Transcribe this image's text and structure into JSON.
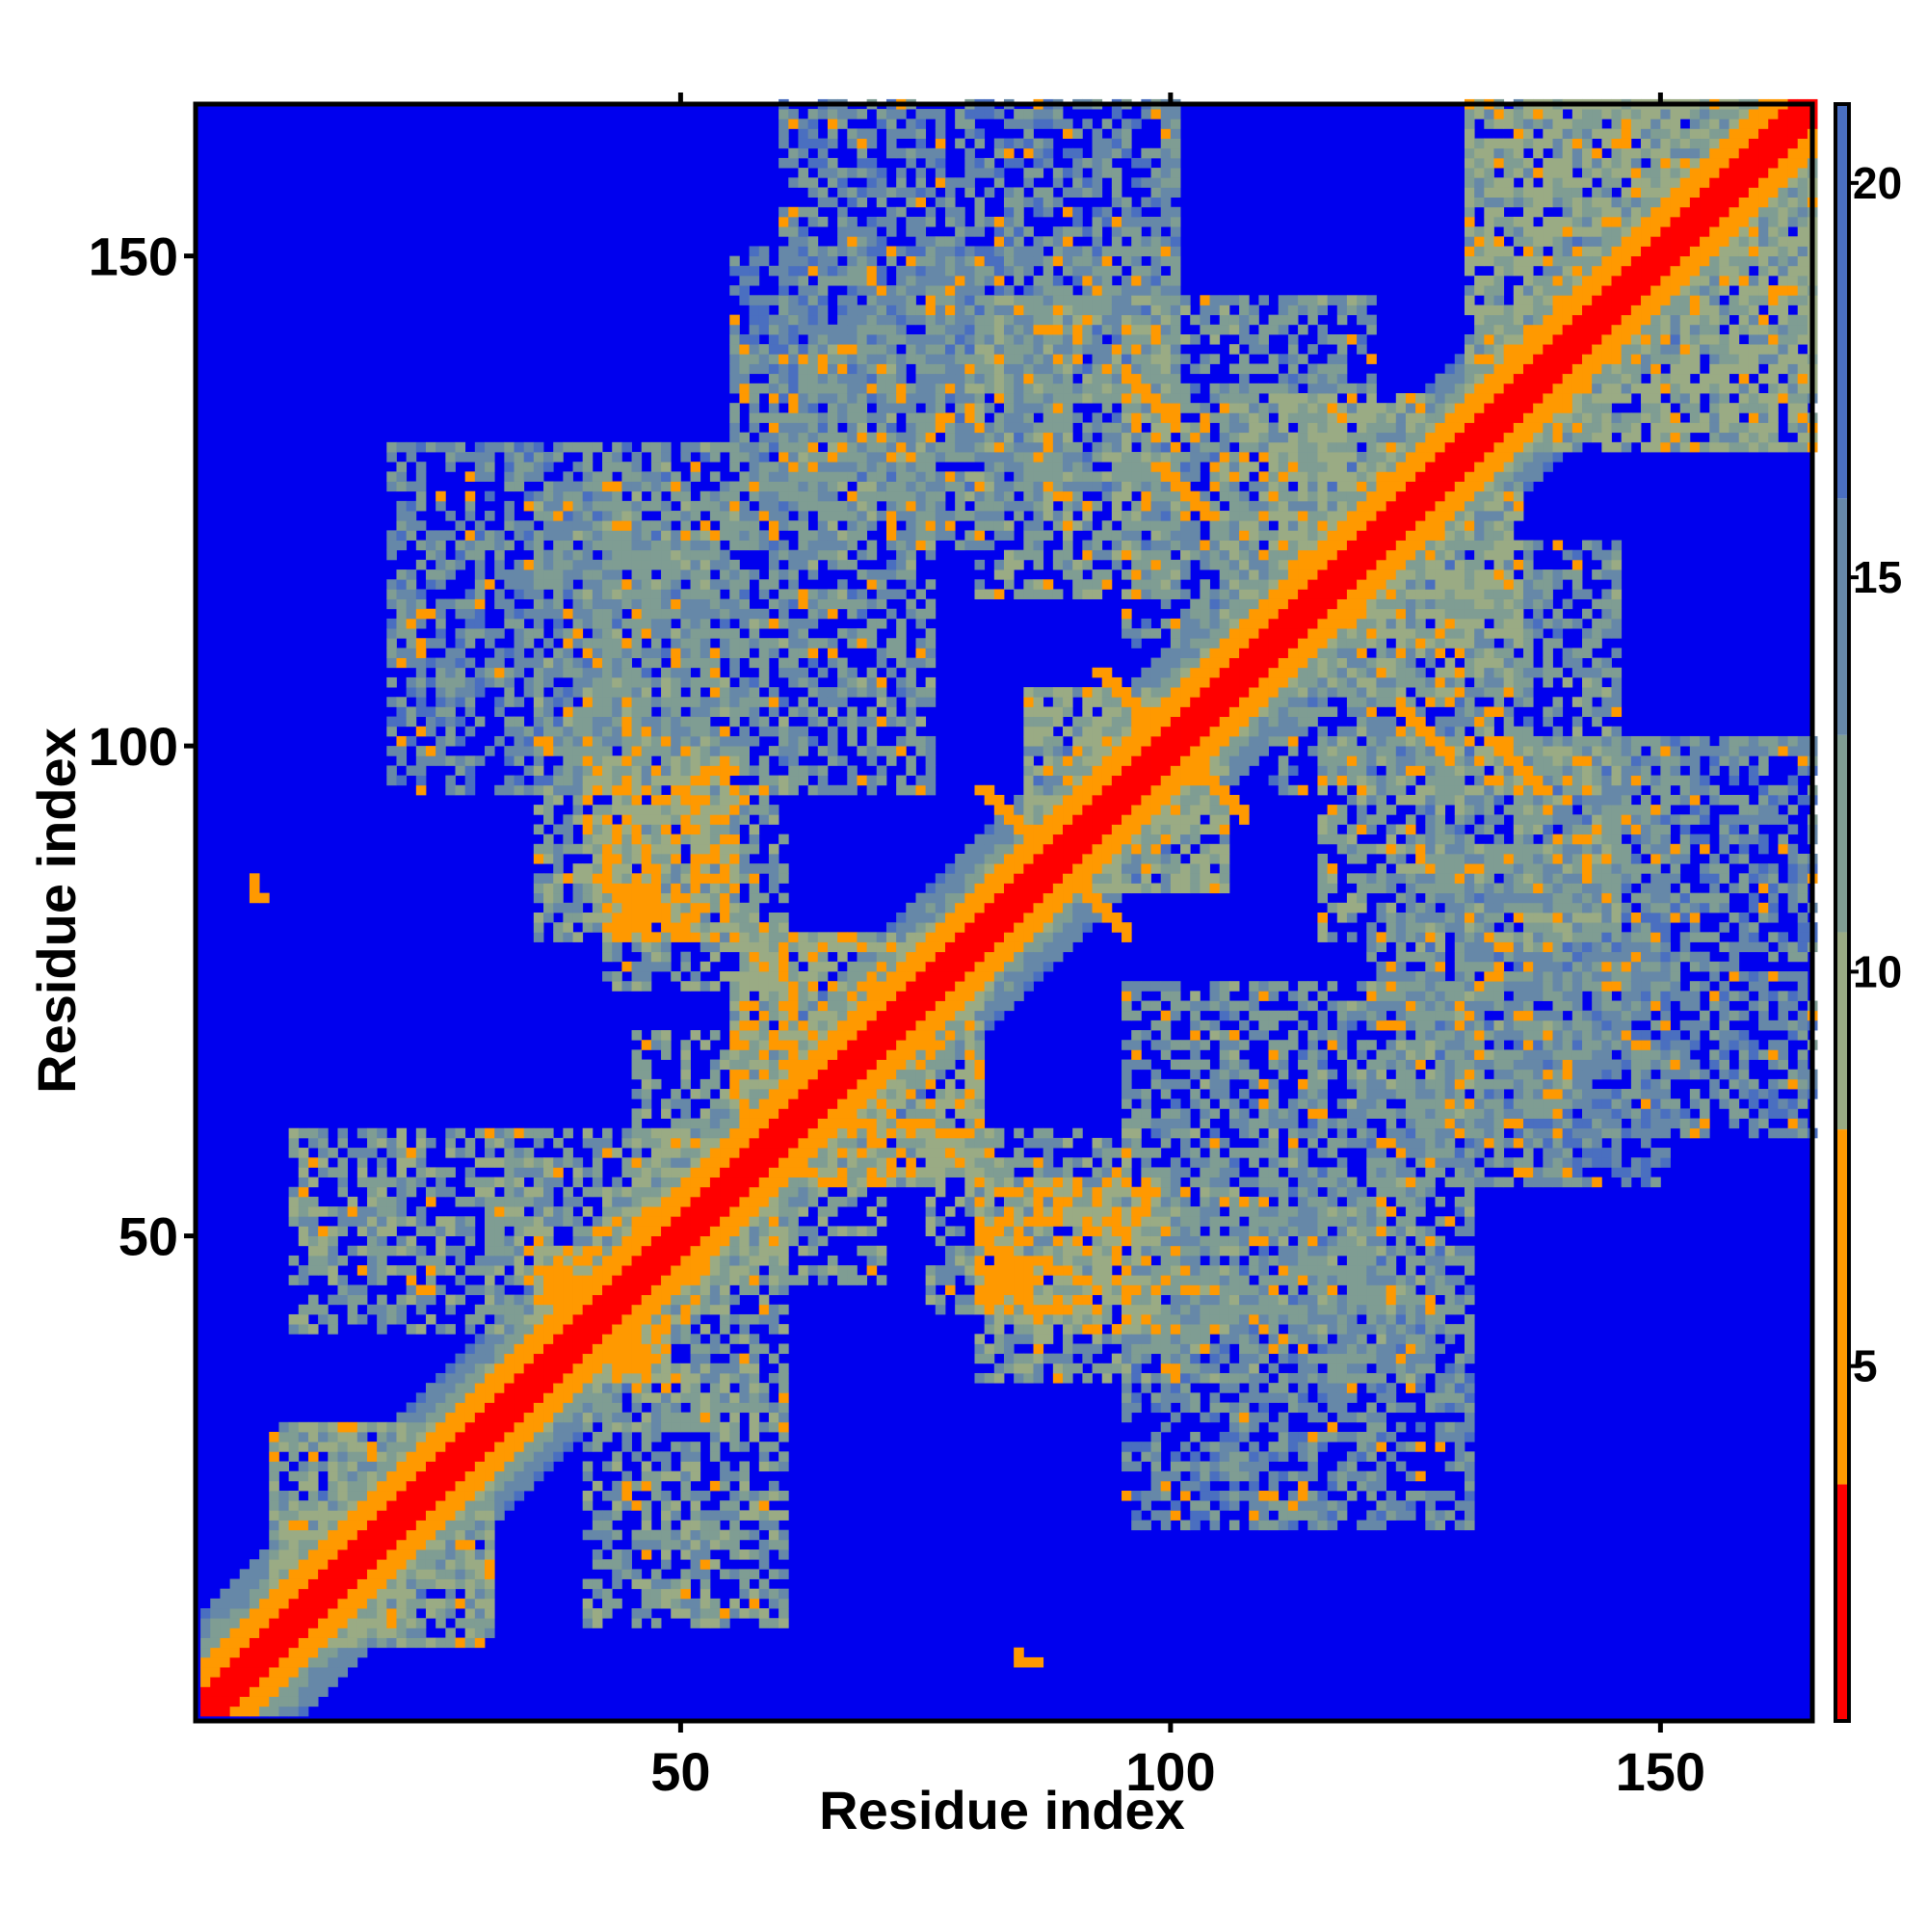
{
  "chart_data": {
    "type": "heatmap",
    "title": "",
    "xlabel": "Residue index",
    "ylabel": "Residue index",
    "x_range": [
      1,
      165
    ],
    "y_range": [
      1,
      165
    ],
    "x_ticks": [
      50,
      100,
      150
    ],
    "y_ticks": [
      50,
      100,
      150
    ],
    "x_tick_labels": [
      "50",
      "100",
      "150"
    ],
    "y_tick_labels": [
      "50",
      "100",
      "150"
    ],
    "colorbar": {
      "range": [
        0.5,
        21.0
      ],
      "ticks": [
        5,
        10,
        15,
        20
      ],
      "tick_labels": [
        "5",
        "10",
        "15",
        "20"
      ],
      "colors": [
        {
          "max": 3.5,
          "color": "#ff0000"
        },
        {
          "max": 8.0,
          "color": "#ff9900"
        },
        {
          "max": 10.5,
          "color": "#9aab84"
        },
        {
          "max": 13.0,
          "color": "#7f9d93"
        },
        {
          "max": 16.0,
          "color": "#6688a8"
        },
        {
          "max": 21.0,
          "color": "#4a6fc0"
        }
      ],
      "background_color": "#0000ee"
    },
    "symmetric": true,
    "diagonal_band": {
      "red_width": 3,
      "orange_width": 5,
      "green_width": 10
    },
    "contact_regions": [
      {
        "x": [
          8,
          30
        ],
        "y": [
          8,
          30
        ],
        "level": 10
      },
      {
        "x": [
          40,
          60
        ],
        "y": [
          10,
          35
        ],
        "level": 11
      },
      {
        "x": [
          30,
          50
        ],
        "y": [
          40,
          60
        ],
        "level": 11
      },
      {
        "x": [
          35,
          48
        ],
        "y": [
          35,
          48
        ],
        "level": 8
      },
      {
        "x": [
          55,
          80
        ],
        "y": [
          55,
          80
        ],
        "level": 9
      },
      {
        "x": [
          45,
          70
        ],
        "y": [
          45,
          60
        ],
        "level": 10
      },
      {
        "x": [
          75,
          95
        ],
        "y": [
          42,
          60
        ],
        "level": 11
      },
      {
        "x": [
          80,
          98
        ],
        "y": [
          40,
          55
        ],
        "level": 7
      },
      {
        "x": [
          100,
          125
        ],
        "y": [
          35,
          55
        ],
        "level": 12
      },
      {
        "x": [
          95,
          130
        ],
        "y": [
          20,
          45
        ],
        "level": 13
      },
      {
        "x": [
          120,
          140
        ],
        "y": [
          55,
          80
        ],
        "level": 12
      },
      {
        "x": [
          135,
          150
        ],
        "y": [
          75,
          100
        ],
        "level": 13
      },
      {
        "x": [
          115,
          145
        ],
        "y": [
          80,
          100
        ],
        "level": 11
      },
      {
        "x": [
          85,
          105
        ],
        "y": [
          85,
          105
        ],
        "level": 10
      },
      {
        "x": [
          110,
          135
        ],
        "y": [
          105,
          135
        ],
        "level": 10
      },
      {
        "x": [
          95,
          120
        ],
        "y": [
          110,
          145
        ],
        "level": 12
      },
      {
        "x": [
          60,
          100
        ],
        "y": [
          125,
          165
        ],
        "level": 13
      },
      {
        "x": [
          40,
          75
        ],
        "y": [
          95,
          130
        ],
        "level": 12
      },
      {
        "x": [
          35,
          55
        ],
        "y": [
          80,
          100
        ],
        "level": 11
      },
      {
        "x": [
          130,
          165
        ],
        "y": [
          130,
          165
        ],
        "level": 10
      },
      {
        "x": [
          55,
          80
        ],
        "y": [
          135,
          150
        ],
        "level": 14
      }
    ],
    "hotspots": [
      {
        "x": 44,
        "y": 85,
        "len": 6,
        "dir": "anti",
        "level": 6
      },
      {
        "x": 80,
        "y": 95,
        "len": 7,
        "dir": "anti",
        "level": 5
      },
      {
        "x": 92,
        "y": 107,
        "len": 7,
        "dir": "anti",
        "level": 5
      },
      {
        "x": 98,
        "y": 128,
        "len": 6,
        "dir": "anti",
        "level": 6
      },
      {
        "x": 132,
        "y": 100,
        "len": 5,
        "dir": "anti",
        "level": 6
      },
      {
        "x": 36,
        "y": 46,
        "len": 3,
        "dir": "anti",
        "level": 6
      },
      {
        "x": 42,
        "y": 38,
        "len": 3,
        "dir": "anti",
        "level": 6
      },
      {
        "x": 81,
        "y": 46,
        "len": 5,
        "dir": "anti",
        "level": 6
      },
      {
        "x": 6,
        "y": 84,
        "len": 1,
        "dir": "anti",
        "level": 6
      },
      {
        "x": 85,
        "y": 6,
        "len": 1,
        "dir": "anti",
        "level": 6
      }
    ]
  }
}
